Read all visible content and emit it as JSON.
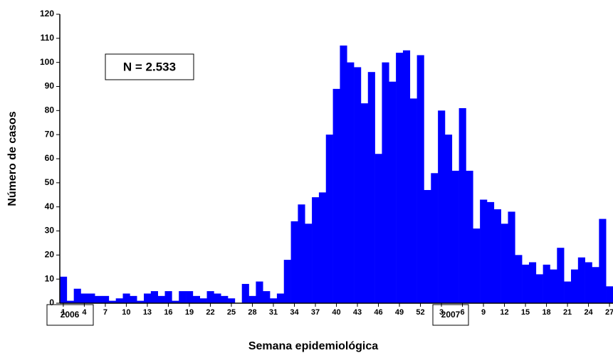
{
  "chart_data": {
    "type": "bar",
    "x_label": "Semana epidemiológica",
    "y_label": "Número de casos",
    "annotations": [
      "N = 2.533",
      "2006",
      "2007"
    ],
    "categories": [
      "1",
      null,
      null,
      "4",
      null,
      null,
      "7",
      null,
      null,
      "10",
      null,
      null,
      "13",
      null,
      null,
      "16",
      null,
      null,
      "19",
      null,
      null,
      "22",
      null,
      null,
      "25",
      null,
      null,
      "28",
      null,
      null,
      "31",
      null,
      null,
      "34",
      null,
      null,
      "37",
      null,
      null,
      "40",
      null,
      null,
      "43",
      null,
      null,
      "46",
      null,
      null,
      "49",
      null,
      null,
      "52",
      null,
      null,
      "3",
      null,
      null,
      "6",
      null,
      null,
      "9",
      null,
      null,
      "12",
      null,
      null,
      "15",
      null,
      null,
      "18",
      null,
      null,
      "21",
      null,
      null,
      "24",
      null,
      null,
      "27"
    ],
    "values": [
      11,
      1,
      6,
      4,
      4,
      3,
      3,
      1,
      2,
      4,
      3,
      1,
      4,
      5,
      3,
      5,
      1,
      5,
      5,
      3,
      2,
      5,
      4,
      3,
      2,
      0,
      8,
      3,
      9,
      5,
      2,
      4,
      18,
      34,
      41,
      33,
      44,
      46,
      70,
      89,
      107,
      100,
      98,
      83,
      96,
      62,
      100,
      92,
      104,
      105,
      85,
      103,
      47,
      54,
      80,
      70,
      55,
      81,
      55,
      31,
      43,
      42,
      39,
      33,
      38,
      20,
      16,
      17,
      12,
      16,
      14,
      23,
      9,
      14,
      19,
      17,
      15,
      35,
      7
    ],
    "color": "#0000ff",
    "ylim": [
      0,
      120
    ],
    "yticks": [
      0,
      10,
      20,
      30,
      40,
      50,
      60,
      70,
      80,
      90,
      100,
      110,
      120
    ],
    "grid": false
  }
}
